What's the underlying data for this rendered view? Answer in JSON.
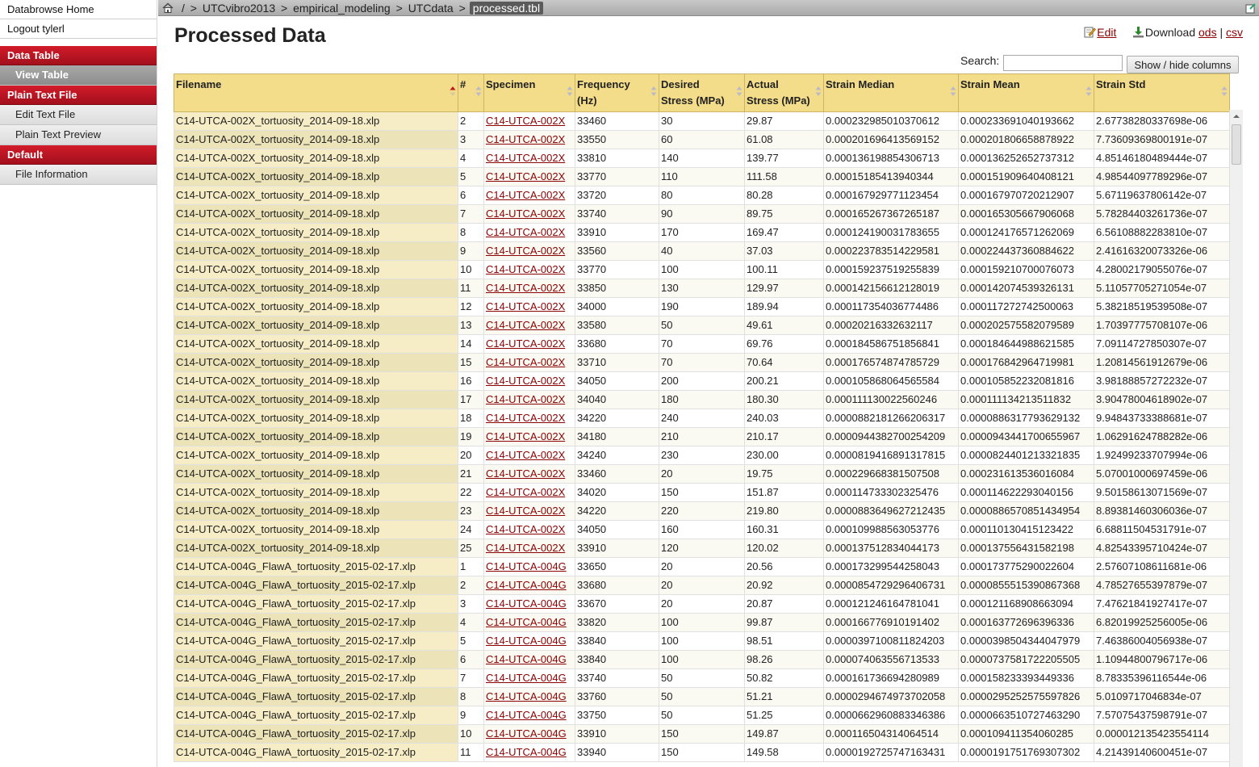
{
  "sidebar": {
    "links": [
      "Databrowse Home",
      "Logout tylerl"
    ],
    "sections": [
      {
        "title": "Data Table",
        "items": [
          {
            "label": "View Table",
            "active": true
          }
        ]
      },
      {
        "title": "Plain Text File",
        "items": [
          {
            "label": "Edit Text File",
            "active": false
          },
          {
            "label": "Plain Text Preview",
            "active": false
          }
        ]
      },
      {
        "title": "Default",
        "items": [
          {
            "label": "File Information",
            "active": false
          }
        ]
      }
    ]
  },
  "breadcrumb": {
    "root": "/",
    "items": [
      "UTCvibro2013",
      "empirical_modeling",
      "UTCdata"
    ],
    "current": "processed.tbl",
    "separator": ">"
  },
  "page": {
    "title": "Processed Data",
    "edit_label": "Edit",
    "download_label": "Download",
    "ods_label": "ods",
    "csv_label": "csv",
    "pipe": "|",
    "search_label": "Search:",
    "search_value": "",
    "columns_button": "Show / hide columns"
  },
  "colors": {
    "accent": "#c0141f",
    "header_bg": "#f3dd8a",
    "link": "#8b0000"
  },
  "table": {
    "columns": [
      {
        "label": "Filename",
        "sorted": "desc"
      },
      {
        "label": "#",
        "sorted": "none"
      },
      {
        "label": "Specimen",
        "sorted": "none"
      },
      {
        "label": "Frequency (Hz)",
        "sorted": "none"
      },
      {
        "label": "Desired Stress (MPa)",
        "sorted": "none"
      },
      {
        "label": "Actual Stress (MPa)",
        "sorted": "none"
      },
      {
        "label": "Strain Median",
        "sorted": "none"
      },
      {
        "label": "Strain Mean",
        "sorted": "none"
      },
      {
        "label": "Strain Std",
        "sorted": "none"
      }
    ],
    "rows": [
      [
        "C14-UTCA-002X_tortuosity_2014-09-18.xlp",
        "2",
        "C14-UTCA-002X",
        "33460",
        "30",
        "29.87",
        "0.000232985010370612",
        "0.000233691040193662",
        "2.67738280337698e-06"
      ],
      [
        "C14-UTCA-002X_tortuosity_2014-09-18.xlp",
        "3",
        "C14-UTCA-002X",
        "33550",
        "60",
        "61.08",
        "0.000201696413569152",
        "0.000201806658878922",
        "7.73609369800191e-07"
      ],
      [
        "C14-UTCA-002X_tortuosity_2014-09-18.xlp",
        "4",
        "C14-UTCA-002X",
        "33810",
        "140",
        "139.77",
        "0.000136198854306713",
        "0.000136252652737312",
        "4.85146180489444e-07"
      ],
      [
        "C14-UTCA-002X_tortuosity_2014-09-18.xlp",
        "5",
        "C14-UTCA-002X",
        "33770",
        "110",
        "111.58",
        "0.00015185413940344",
        "0.000151909640408121",
        "4.98544097789296e-07"
      ],
      [
        "C14-UTCA-002X_tortuosity_2014-09-18.xlp",
        "6",
        "C14-UTCA-002X",
        "33720",
        "80",
        "80.28",
        "0.000167929771123454",
        "0.000167970720212907",
        "5.67119637806142e-07"
      ],
      [
        "C14-UTCA-002X_tortuosity_2014-09-18.xlp",
        "7",
        "C14-UTCA-002X",
        "33740",
        "90",
        "89.75",
        "0.000165267367265187",
        "0.000165305667906068",
        "5.78284403261736e-07"
      ],
      [
        "C14-UTCA-002X_tortuosity_2014-09-18.xlp",
        "8",
        "C14-UTCA-002X",
        "33910",
        "170",
        "169.47",
        "0.000124190031783655",
        "0.000124176571262069",
        "6.56108882283810e-07"
      ],
      [
        "C14-UTCA-002X_tortuosity_2014-09-18.xlp",
        "9",
        "C14-UTCA-002X",
        "33560",
        "40",
        "37.03",
        "0.000223783514229581",
        "0.000224437360884622",
        "2.41616320073326e-06"
      ],
      [
        "C14-UTCA-002X_tortuosity_2014-09-18.xlp",
        "10",
        "C14-UTCA-002X",
        "33770",
        "100",
        "100.11",
        "0.000159237519255839",
        "0.000159210700076073",
        "4.28002179055076e-07"
      ],
      [
        "C14-UTCA-002X_tortuosity_2014-09-18.xlp",
        "11",
        "C14-UTCA-002X",
        "33850",
        "130",
        "129.97",
        "0.000142156612128019",
        "0.000142074539326131",
        "5.11057705271054e-07"
      ],
      [
        "C14-UTCA-002X_tortuosity_2014-09-18.xlp",
        "12",
        "C14-UTCA-002X",
        "34000",
        "190",
        "189.94",
        "0.000117354036774486",
        "0.000117272742500063",
        "5.38218519539508e-07"
      ],
      [
        "C14-UTCA-002X_tortuosity_2014-09-18.xlp",
        "13",
        "C14-UTCA-002X",
        "33580",
        "50",
        "49.61",
        "0.00020216332632117",
        "0.000202575582079589",
        "1.70397775708107e-06"
      ],
      [
        "C14-UTCA-002X_tortuosity_2014-09-18.xlp",
        "14",
        "C14-UTCA-002X",
        "33680",
        "70",
        "69.76",
        "0.000184586751856841",
        "0.000184644988621585",
        "7.09114727850307e-07"
      ],
      [
        "C14-UTCA-002X_tortuosity_2014-09-18.xlp",
        "15",
        "C14-UTCA-002X",
        "33710",
        "70",
        "70.64",
        "0.000176574874785729",
        "0.000176842964719981",
        "1.20814561912679e-06"
      ],
      [
        "C14-UTCA-002X_tortuosity_2014-09-18.xlp",
        "16",
        "C14-UTCA-002X",
        "34050",
        "200",
        "200.21",
        "0.000105868064565584",
        "0.000105852232081816",
        "3.98188857272232e-07"
      ],
      [
        "C14-UTCA-002X_tortuosity_2014-09-18.xlp",
        "17",
        "C14-UTCA-002X",
        "34040",
        "180",
        "180.30",
        "0.000111130022560246",
        "0.000111134213511832",
        "3.90478004618902e-07"
      ],
      [
        "C14-UTCA-002X_tortuosity_2014-09-18.xlp",
        "18",
        "C14-UTCA-002X",
        "34220",
        "240",
        "240.03",
        "0.0000882181266206317",
        "0.0000886317793629132",
        "9.94843733388681e-07"
      ],
      [
        "C14-UTCA-002X_tortuosity_2014-09-18.xlp",
        "19",
        "C14-UTCA-002X",
        "34180",
        "210",
        "210.17",
        "0.0000944382700254209",
        "0.0000943441700655967",
        "1.06291624788282e-06"
      ],
      [
        "C14-UTCA-002X_tortuosity_2014-09-18.xlp",
        "20",
        "C14-UTCA-002X",
        "34240",
        "230",
        "230.00",
        "0.0000819416891317815",
        "0.0000824401213321835",
        "1.92499233707994e-06"
      ],
      [
        "C14-UTCA-002X_tortuosity_2014-09-18.xlp",
        "21",
        "C14-UTCA-002X",
        "33460",
        "20",
        "19.75",
        "0.000229668381507508",
        "0.000231613536016084",
        "5.07001000697459e-06"
      ],
      [
        "C14-UTCA-002X_tortuosity_2014-09-18.xlp",
        "22",
        "C14-UTCA-002X",
        "34020",
        "150",
        "151.87",
        "0.000114733302325476",
        "0.000114622293040156",
        "9.50158613071569e-07"
      ],
      [
        "C14-UTCA-002X_tortuosity_2014-09-18.xlp",
        "23",
        "C14-UTCA-002X",
        "34220",
        "220",
        "219.80",
        "0.0000883649627212435",
        "0.0000886570851434954",
        "8.89381460306036e-07"
      ],
      [
        "C14-UTCA-002X_tortuosity_2014-09-18.xlp",
        "24",
        "C14-UTCA-002X",
        "34050",
        "160",
        "160.31",
        "0.000109988563053776",
        "0.000110130415123422",
        "6.68811504531791e-07"
      ],
      [
        "C14-UTCA-002X_tortuosity_2014-09-18.xlp",
        "25",
        "C14-UTCA-002X",
        "33910",
        "120",
        "120.02",
        "0.000137512834044173",
        "0.000137556431582198",
        "4.82543395710424e-07"
      ],
      [
        "C14-UTCA-004G_FlawA_tortuosity_2015-02-17.xlp",
        "1",
        "C14-UTCA-004G",
        "33650",
        "20",
        "20.56",
        "0.000173299544258043",
        "0.000173775290022604",
        "2.57607108611681e-06"
      ],
      [
        "C14-UTCA-004G_FlawA_tortuosity_2015-02-17.xlp",
        "2",
        "C14-UTCA-004G",
        "33680",
        "20",
        "20.92",
        "0.0000854729296406731",
        "0.0000855515390867368",
        "4.78527655397879e-07"
      ],
      [
        "C14-UTCA-004G_FlawA_tortuosity_2015-02-17.xlp",
        "3",
        "C14-UTCA-004G",
        "33670",
        "20",
        "20.87",
        "0.000121246164781041",
        "0.000121168908663094",
        "7.47621841927417e-07"
      ],
      [
        "C14-UTCA-004G_FlawA_tortuosity_2015-02-17.xlp",
        "4",
        "C14-UTCA-004G",
        "33820",
        "100",
        "99.87",
        "0.000166776910191402",
        "0.000163772696396336",
        "6.82019925256005e-06"
      ],
      [
        "C14-UTCA-004G_FlawA_tortuosity_2015-02-17.xlp",
        "5",
        "C14-UTCA-004G",
        "33840",
        "100",
        "98.51",
        "0.0000397100811824203",
        "0.0000398504344047979",
        "7.46386004056938e-07"
      ],
      [
        "C14-UTCA-004G_FlawA_tortuosity_2015-02-17.xlp",
        "6",
        "C14-UTCA-004G",
        "33840",
        "100",
        "98.26",
        "0.000074063556713533",
        "0.0000737581722205505",
        "1.10944800796717e-06"
      ],
      [
        "C14-UTCA-004G_FlawA_tortuosity_2015-02-17.xlp",
        "7",
        "C14-UTCA-004G",
        "33740",
        "50",
        "50.82",
        "0.000161736694280989",
        "0.000158233393449336",
        "8.78335396116544e-06"
      ],
      [
        "C14-UTCA-004G_FlawA_tortuosity_2015-02-17.xlp",
        "8",
        "C14-UTCA-004G",
        "33760",
        "50",
        "51.21",
        "0.0000294674973702058",
        "0.0000295252575597826",
        "5.0109717046834e-07"
      ],
      [
        "C14-UTCA-004G_FlawA_tortuosity_2015-02-17.xlp",
        "9",
        "C14-UTCA-004G",
        "33750",
        "50",
        "51.25",
        "0.0000662960883346386",
        "0.0000663510727463290",
        "7.57075437598791e-07"
      ],
      [
        "C14-UTCA-004G_FlawA_tortuosity_2015-02-17.xlp",
        "10",
        "C14-UTCA-004G",
        "33910",
        "150",
        "149.87",
        "0.000116504314064514",
        "0.000109411354060285",
        "0.000012135423554114"
      ],
      [
        "C14-UTCA-004G_FlawA_tortuosity_2015-02-17.xlp",
        "11",
        "C14-UTCA-004G",
        "33940",
        "150",
        "149.58",
        "0.0000192725747163431",
        "0.0000191751769307302",
        "4.21439140600451e-07"
      ]
    ]
  }
}
